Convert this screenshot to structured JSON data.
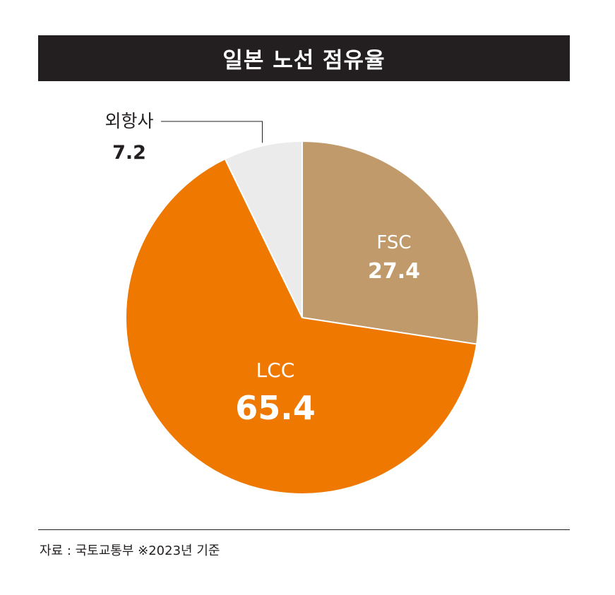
{
  "title": "일본 노선 점유율",
  "chart_data": {
    "type": "pie",
    "title": "일본 노선 점유율",
    "slices": [
      {
        "label": "FSC",
        "value": 27.4,
        "value_label": "27.4",
        "color": "#c19a6b",
        "label_color": "#ffffff"
      },
      {
        "label": "LCC",
        "value": 65.4,
        "value_label": "65.4",
        "color": "#ee7800",
        "label_color": "#ffffff"
      },
      {
        "label": "외항사",
        "value": 7.2,
        "value_label": "7.2",
        "color": "#ebebec",
        "label_color": "#231f20"
      }
    ],
    "start_angle": "12 o'clock",
    "direction": "clockwise",
    "legend": "none"
  },
  "footer": {
    "source": "자료 : 국토교통부 ※2023년 기준"
  }
}
